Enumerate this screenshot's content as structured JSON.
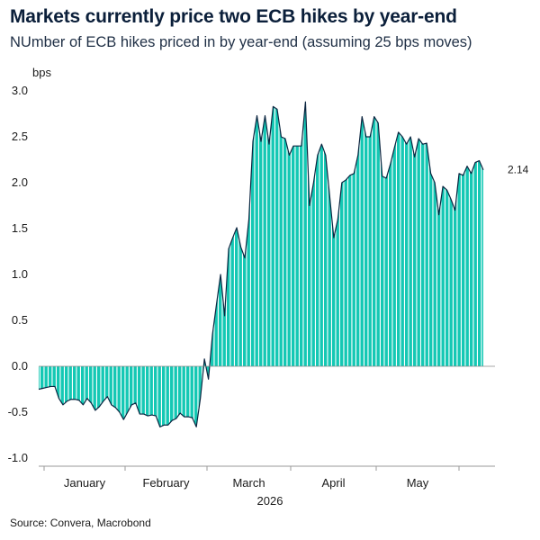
{
  "header": {
    "title": "Markets currently price two ECB hikes by year-end",
    "subtitle": "NUmber of ECB hikes priced in by year-end (assuming 25 bps moves)"
  },
  "footer": {
    "source": "Source: Convera, Macrobond"
  },
  "colors": {
    "fill": "#14c8b4",
    "stripe": "#ffffff",
    "line": "#0b2540",
    "axis": "#9a9a9a"
  },
  "chart_data": {
    "type": "area",
    "title": "Markets currently price two ECB hikes by year-end",
    "subtitle": "NUmber of ECB hikes priced in by year-end (assuming 25 bps moves)",
    "ylabel": "bps",
    "xlabel": "2026",
    "ylim": [
      -1.0,
      3.0
    ],
    "yticks": [
      "3.0",
      "2.5",
      "2.0",
      "1.5",
      "1.0",
      "0.5",
      "0.0",
      "-0.5",
      "-1.0"
    ],
    "ytick_values": [
      3.0,
      2.5,
      2.0,
      1.5,
      1.0,
      0.5,
      0.0,
      -0.5,
      -1.0
    ],
    "month_labels": [
      "January",
      "February",
      "March",
      "April",
      "May"
    ],
    "year_label": "2026",
    "last_value_label": "2.14",
    "series": [
      {
        "values": [
          -0.25,
          -0.24,
          -0.23,
          -0.22,
          -0.22,
          -0.35,
          -0.42,
          -0.38,
          -0.36,
          -0.36,
          -0.37,
          -0.42,
          -0.35,
          -0.4,
          -0.48,
          -0.44,
          -0.38,
          -0.33,
          -0.42,
          -0.45,
          -0.5,
          -0.58,
          -0.5,
          -0.42,
          -0.4,
          -0.52,
          -0.52,
          -0.54,
          -0.53,
          -0.54,
          -0.66,
          -0.64,
          -0.64,
          -0.59,
          -0.57,
          -0.51,
          -0.55,
          -0.55,
          -0.56,
          -0.66,
          -0.35,
          0.08,
          -0.14,
          0.35,
          0.68,
          1.0,
          0.55,
          1.28,
          1.4,
          1.51,
          1.3,
          1.18,
          1.6,
          2.45,
          2.73,
          2.45,
          2.73,
          2.42,
          2.83,
          2.8,
          2.5,
          2.48,
          2.3,
          2.4,
          2.4,
          2.4,
          2.88,
          1.75,
          2.0,
          2.3,
          2.42,
          2.3,
          1.85,
          1.4,
          1.6,
          2.0,
          2.03,
          2.08,
          2.1,
          2.3,
          2.72,
          2.5,
          2.5,
          2.72,
          2.65,
          2.07,
          2.05,
          2.2,
          2.38,
          2.55,
          2.5,
          2.42,
          2.5,
          2.28,
          2.48,
          2.42,
          2.43,
          2.1,
          2.0,
          1.65,
          1.96,
          1.92,
          1.82,
          1.7,
          2.1,
          2.08,
          2.18,
          2.1,
          2.22,
          2.24,
          2.14
        ]
      }
    ]
  }
}
